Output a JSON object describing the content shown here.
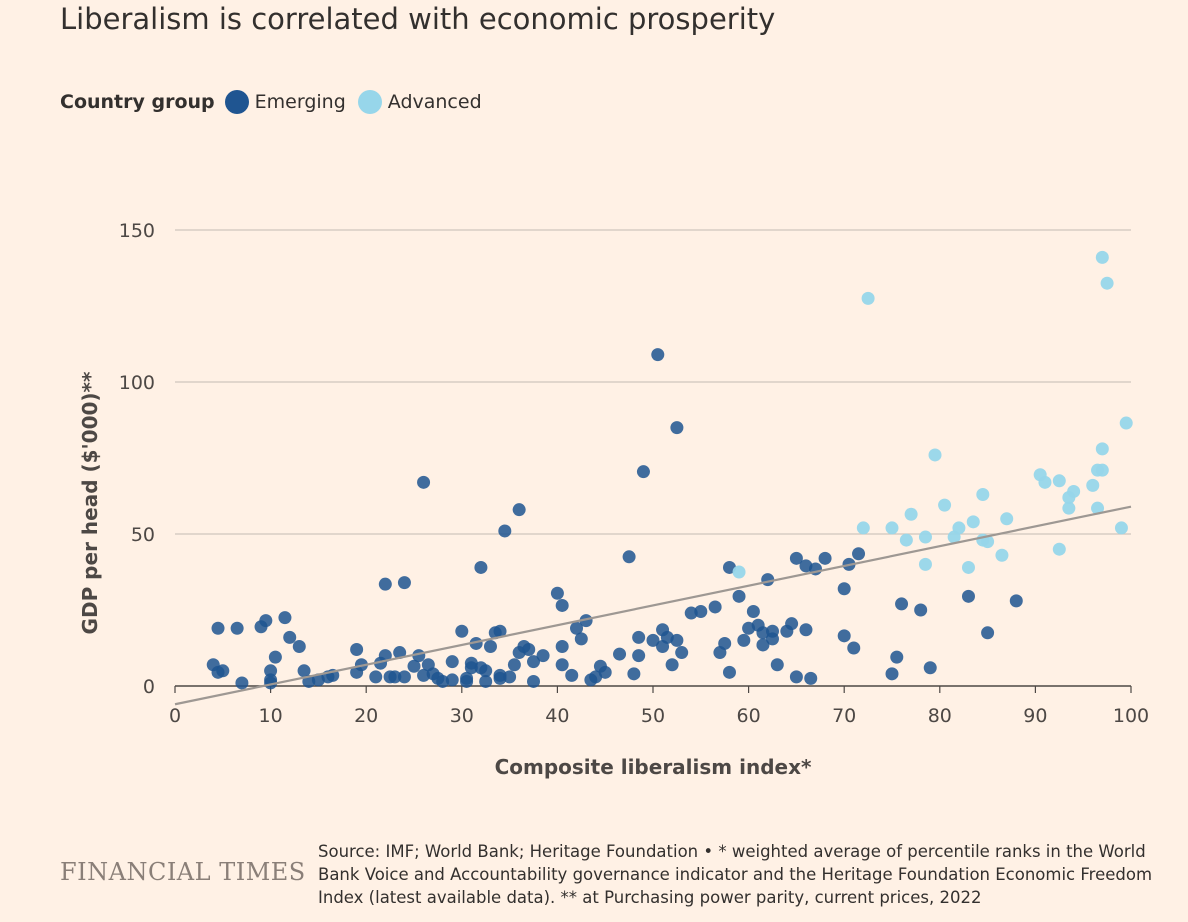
{
  "title": "Liberalism is correlated with economic prosperity",
  "legend": {
    "title": "Country group",
    "items": [
      {
        "label": "Emerging",
        "color": "#1f5591"
      },
      {
        "label": "Advanced",
        "color": "#97d6ea"
      }
    ]
  },
  "chart_data": {
    "type": "scatter",
    "xlabel": "Composite liberalism index*",
    "ylabel": "GDP per head ($'000)**",
    "xlim": [
      0,
      100
    ],
    "ylim": [
      0,
      150
    ],
    "xticks": [
      0,
      10,
      20,
      30,
      40,
      50,
      60,
      70,
      80,
      90,
      100
    ],
    "yticks": [
      0,
      50,
      100,
      150
    ],
    "grid": "horizontal",
    "legend_position": "top-left",
    "trendline": {
      "x": [
        0,
        100
      ],
      "y": [
        -6,
        59
      ],
      "color": "#9e9893"
    },
    "series": [
      {
        "name": "Emerging",
        "color": "#1f5591",
        "points": [
          [
            4,
            7
          ],
          [
            4.5,
            19
          ],
          [
            4.5,
            4.5
          ],
          [
            5,
            5
          ],
          [
            6.5,
            19
          ],
          [
            7,
            1
          ],
          [
            9,
            19.5
          ],
          [
            9.5,
            21.5
          ],
          [
            10,
            5
          ],
          [
            10,
            2
          ],
          [
            10,
            1
          ],
          [
            10.5,
            9.5
          ],
          [
            11.5,
            22.5
          ],
          [
            12,
            16
          ],
          [
            13,
            13
          ],
          [
            13.5,
            5
          ],
          [
            14,
            1.5
          ],
          [
            15,
            2
          ],
          [
            16,
            3
          ],
          [
            16.5,
            3.5
          ],
          [
            19,
            12
          ],
          [
            19,
            4.5
          ],
          [
            19.5,
            7
          ],
          [
            21,
            3
          ],
          [
            21.5,
            7.5
          ],
          [
            22,
            33.5
          ],
          [
            22,
            10
          ],
          [
            22.5,
            3
          ],
          [
            23,
            3
          ],
          [
            23.5,
            11
          ],
          [
            24,
            34
          ],
          [
            24,
            3
          ],
          [
            25,
            6.5
          ],
          [
            25.5,
            10
          ],
          [
            26,
            3.5
          ],
          [
            26,
            67
          ],
          [
            26.5,
            7
          ],
          [
            27,
            4
          ],
          [
            27.5,
            2.5
          ],
          [
            28,
            1.5
          ],
          [
            29,
            2
          ],
          [
            29,
            8
          ],
          [
            30,
            18
          ],
          [
            30.5,
            2.5
          ],
          [
            30.5,
            1.5
          ],
          [
            31,
            7.5
          ],
          [
            31,
            6
          ],
          [
            31.5,
            14
          ],
          [
            32,
            39
          ],
          [
            32,
            6
          ],
          [
            32.5,
            5
          ],
          [
            32.5,
            1.5
          ],
          [
            33,
            13
          ],
          [
            33.5,
            17.5
          ],
          [
            34,
            18
          ],
          [
            34,
            3.5
          ],
          [
            34,
            2.5
          ],
          [
            34.5,
            51
          ],
          [
            35,
            3
          ],
          [
            35.5,
            7
          ],
          [
            36,
            58
          ],
          [
            36,
            11
          ],
          [
            36.5,
            13
          ],
          [
            37,
            12
          ],
          [
            37.5,
            8
          ],
          [
            37.5,
            1.5
          ],
          [
            38.5,
            10
          ],
          [
            40,
            30.5
          ],
          [
            40.5,
            26.5
          ],
          [
            40.5,
            7
          ],
          [
            40.5,
            13
          ],
          [
            41.5,
            3.5
          ],
          [
            42,
            19
          ],
          [
            42.5,
            15.5
          ],
          [
            43,
            21.5
          ],
          [
            43.5,
            2
          ],
          [
            44,
            3
          ],
          [
            44.5,
            6.5
          ],
          [
            45,
            4.5
          ],
          [
            46.5,
            10.5
          ],
          [
            47.5,
            42.5
          ],
          [
            48,
            4
          ],
          [
            48.5,
            16
          ],
          [
            48.5,
            10
          ],
          [
            49,
            70.5
          ],
          [
            50,
            15
          ],
          [
            50.5,
            109
          ],
          [
            51,
            18.5
          ],
          [
            51,
            13
          ],
          [
            51.5,
            16
          ],
          [
            52,
            7
          ],
          [
            52.5,
            85
          ],
          [
            52.5,
            15
          ],
          [
            53,
            11
          ],
          [
            54,
            24
          ],
          [
            55,
            24.5
          ],
          [
            56.5,
            26
          ],
          [
            57,
            11
          ],
          [
            57.5,
            14
          ],
          [
            58,
            39
          ],
          [
            58,
            4.5
          ],
          [
            59,
            29.5
          ],
          [
            59.5,
            15
          ],
          [
            60,
            19
          ],
          [
            60.5,
            24.5
          ],
          [
            61,
            20
          ],
          [
            61.5,
            17.5
          ],
          [
            61.5,
            13.5
          ],
          [
            62,
            35
          ],
          [
            62.5,
            18
          ],
          [
            62.5,
            15.5
          ],
          [
            63,
            7
          ],
          [
            64,
            18
          ],
          [
            64.5,
            20.5
          ],
          [
            65,
            42
          ],
          [
            65,
            3
          ],
          [
            66,
            39.5
          ],
          [
            66,
            18.5
          ],
          [
            66.5,
            2.5
          ],
          [
            67,
            38.5
          ],
          [
            68,
            42
          ],
          [
            70,
            32
          ],
          [
            70,
            16.5
          ],
          [
            70.5,
            40
          ],
          [
            71,
            12.5
          ],
          [
            71.5,
            43.5
          ],
          [
            75,
            4
          ],
          [
            75.5,
            9.5
          ],
          [
            76,
            27
          ],
          [
            78,
            25
          ],
          [
            79,
            6
          ],
          [
            83,
            29.5
          ],
          [
            85,
            17.5
          ],
          [
            88,
            28
          ]
        ]
      },
      {
        "name": "Advanced",
        "color": "#97d6ea",
        "points": [
          [
            59,
            37.5
          ],
          [
            72,
            52
          ],
          [
            72.5,
            127.5
          ],
          [
            75,
            52
          ],
          [
            76.5,
            48
          ],
          [
            77,
            56.5
          ],
          [
            78.5,
            40
          ],
          [
            78.5,
            49
          ],
          [
            79.5,
            76
          ],
          [
            80.5,
            59.5
          ],
          [
            81.5,
            49
          ],
          [
            82,
            52
          ],
          [
            83,
            39
          ],
          [
            83.5,
            54
          ],
          [
            84.5,
            63
          ],
          [
            84.5,
            48
          ],
          [
            85,
            47.5
          ],
          [
            86.5,
            43
          ],
          [
            87,
            55
          ],
          [
            90.5,
            69.5
          ],
          [
            91,
            67
          ],
          [
            92.5,
            67.5
          ],
          [
            92.5,
            45
          ],
          [
            93.5,
            62
          ],
          [
            93.5,
            58.5
          ],
          [
            94,
            64
          ],
          [
            96,
            66
          ],
          [
            96.5,
            58.5
          ],
          [
            96.5,
            71
          ],
          [
            97,
            71
          ],
          [
            97,
            78
          ],
          [
            97,
            141
          ],
          [
            97.5,
            132.5
          ],
          [
            99,
            52
          ],
          [
            99.5,
            86.5
          ]
        ]
      }
    ]
  },
  "footer": {
    "brand": "FINANCIAL TIMES",
    "source": "Source: IMF; World Bank; Heritage Foundation • * weighted average of percentile ranks in the World Bank Voice and Accountability governance indicator and the Heritage Foundation Economic Freedom Index (latest available data). ** at Purchasing power parity, current prices, 2022"
  }
}
